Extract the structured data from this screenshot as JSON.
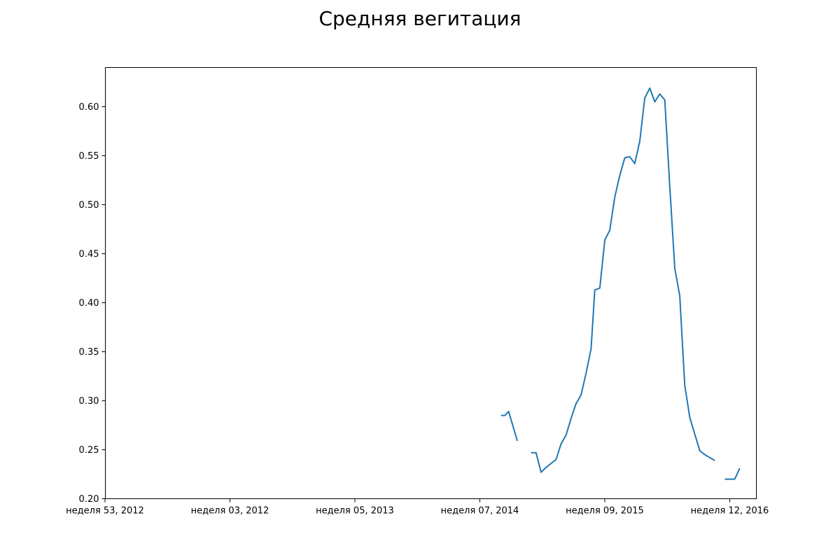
{
  "chart_data": {
    "type": "line",
    "title": "Средняя вегитация",
    "xlabel": "",
    "ylabel": "",
    "x_tick_labels": [
      "неделя 53, 2012",
      "неделя 03, 2012",
      "неделя 05, 2013",
      "неделя 07, 2014",
      "неделя 09, 2015",
      "неделя 12, 2016"
    ],
    "y_tick_labels": [
      "0.20",
      "0.25",
      "0.30",
      "0.35",
      "0.40",
      "0.45",
      "0.50",
      "0.55",
      "0.60"
    ],
    "ylim": [
      0.2,
      0.64
    ],
    "grid": false,
    "colors": {
      "line": "#1f77b4"
    },
    "series": [
      {
        "segments": [
          [
            [
              3.17,
              0.285
            ],
            [
              3.2,
              0.285
            ],
            [
              3.23,
              0.289
            ],
            [
              3.27,
              0.272
            ],
            [
              3.3,
              0.259
            ]
          ],
          [
            [
              3.41,
              0.247
            ],
            [
              3.45,
              0.247
            ],
            [
              3.49,
              0.227
            ],
            [
              3.53,
              0.232
            ],
            [
              3.57,
              0.236
            ],
            [
              3.61,
              0.24
            ],
            [
              3.65,
              0.256
            ],
            [
              3.69,
              0.265
            ],
            [
              3.73,
              0.282
            ],
            [
              3.77,
              0.297
            ],
            [
              3.81,
              0.306
            ],
            [
              3.85,
              0.328
            ],
            [
              3.89,
              0.353
            ],
            [
              3.92,
              0.413
            ],
            [
              3.96,
              0.415
            ],
            [
              4.0,
              0.464
            ],
            [
              4.04,
              0.474
            ],
            [
              4.08,
              0.508
            ],
            [
              4.12,
              0.53
            ],
            [
              4.16,
              0.548
            ],
            [
              4.2,
              0.549
            ],
            [
              4.24,
              0.542
            ],
            [
              4.28,
              0.565
            ],
            [
              4.32,
              0.609
            ],
            [
              4.36,
              0.619
            ],
            [
              4.4,
              0.605
            ],
            [
              4.44,
              0.613
            ],
            [
              4.48,
              0.607
            ],
            [
              4.52,
              0.519
            ],
            [
              4.56,
              0.435
            ],
            [
              4.6,
              0.407
            ],
            [
              4.64,
              0.316
            ],
            [
              4.68,
              0.283
            ],
            [
              4.72,
              0.266
            ],
            [
              4.76,
              0.249
            ],
            [
              4.8,
              0.245
            ],
            [
              4.84,
              0.242
            ],
            [
              4.88,
              0.239
            ]
          ],
          [
            [
              4.96,
              0.22
            ],
            [
              5.0,
              0.22
            ],
            [
              5.04,
              0.22
            ],
            [
              5.08,
              0.231
            ]
          ]
        ]
      }
    ]
  }
}
